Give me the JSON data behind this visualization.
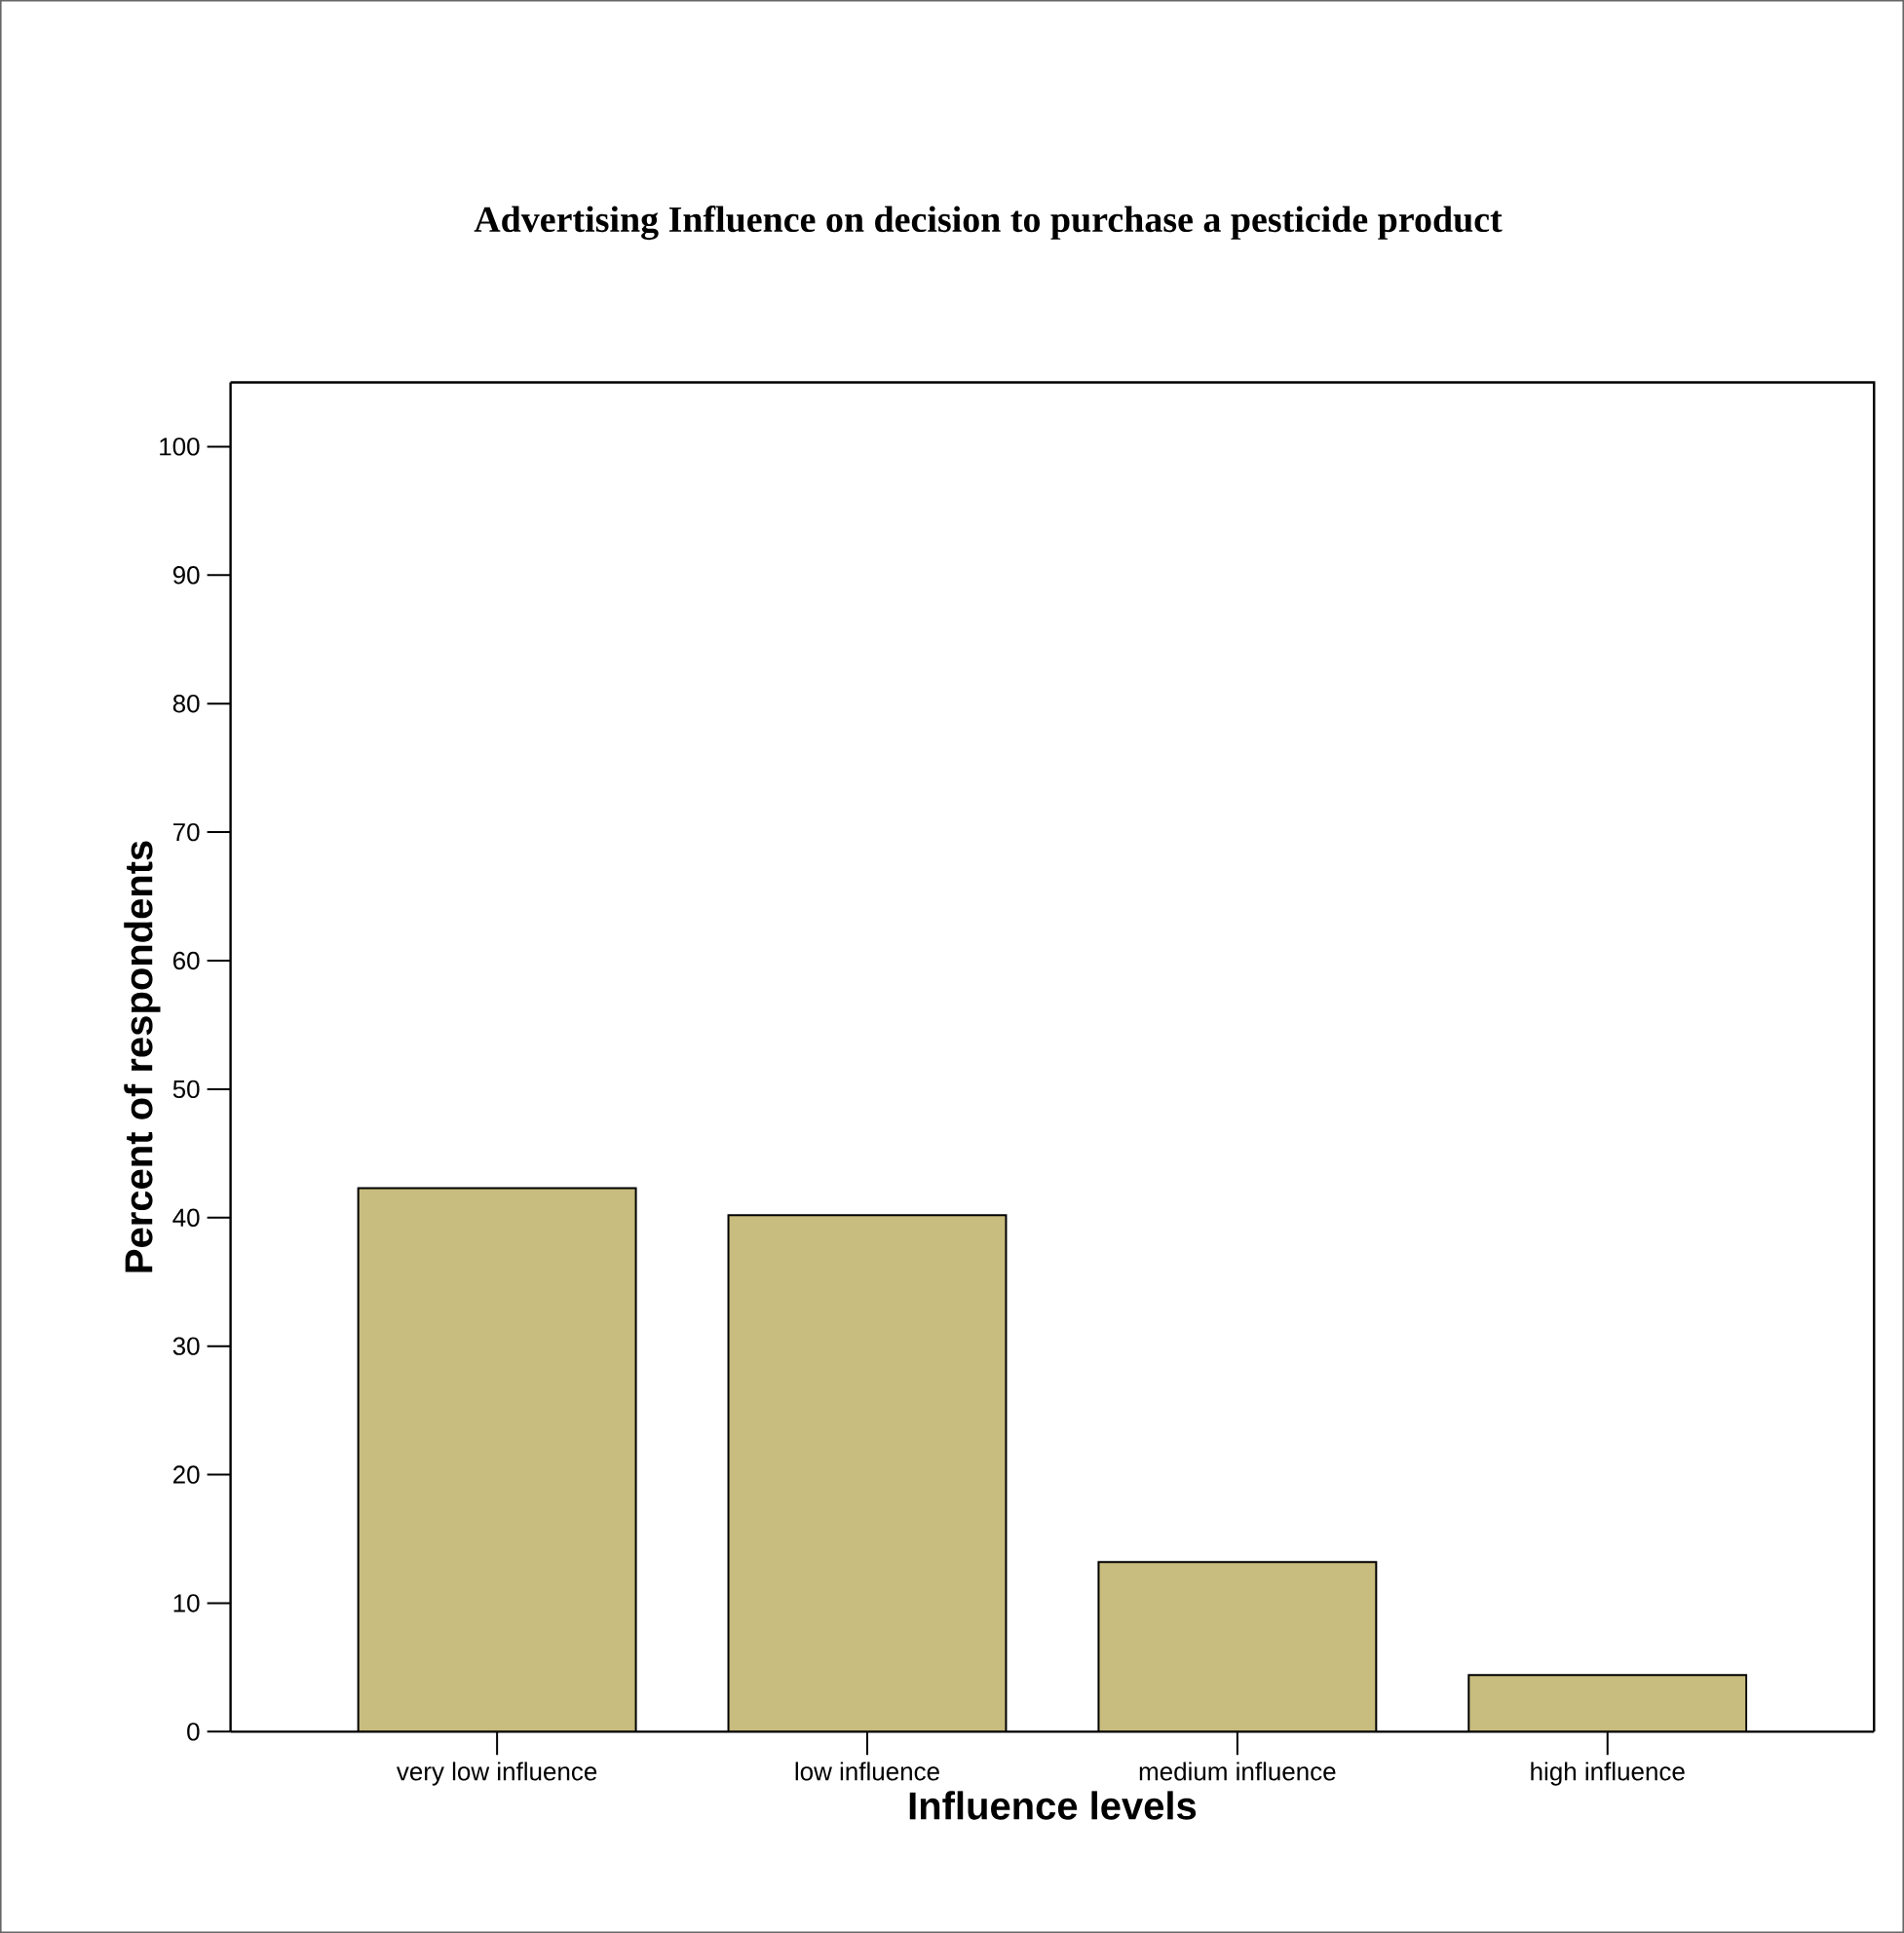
{
  "chart_data": {
    "type": "bar",
    "title": "Advertising Influence on decision to purchase a pesticide product",
    "xlabel": "Influence levels",
    "ylabel": "Percent of respondents",
    "categories": [
      "very low influence",
      "low influence",
      "medium influence",
      "high influence"
    ],
    "values": [
      42.3,
      40.2,
      13.2,
      4.4
    ],
    "color": "#c8bc7e",
    "ylim": [
      0,
      105
    ],
    "yticks": [
      0,
      10,
      20,
      30,
      40,
      50,
      60,
      70,
      80,
      90,
      100
    ],
    "grid": false
  }
}
